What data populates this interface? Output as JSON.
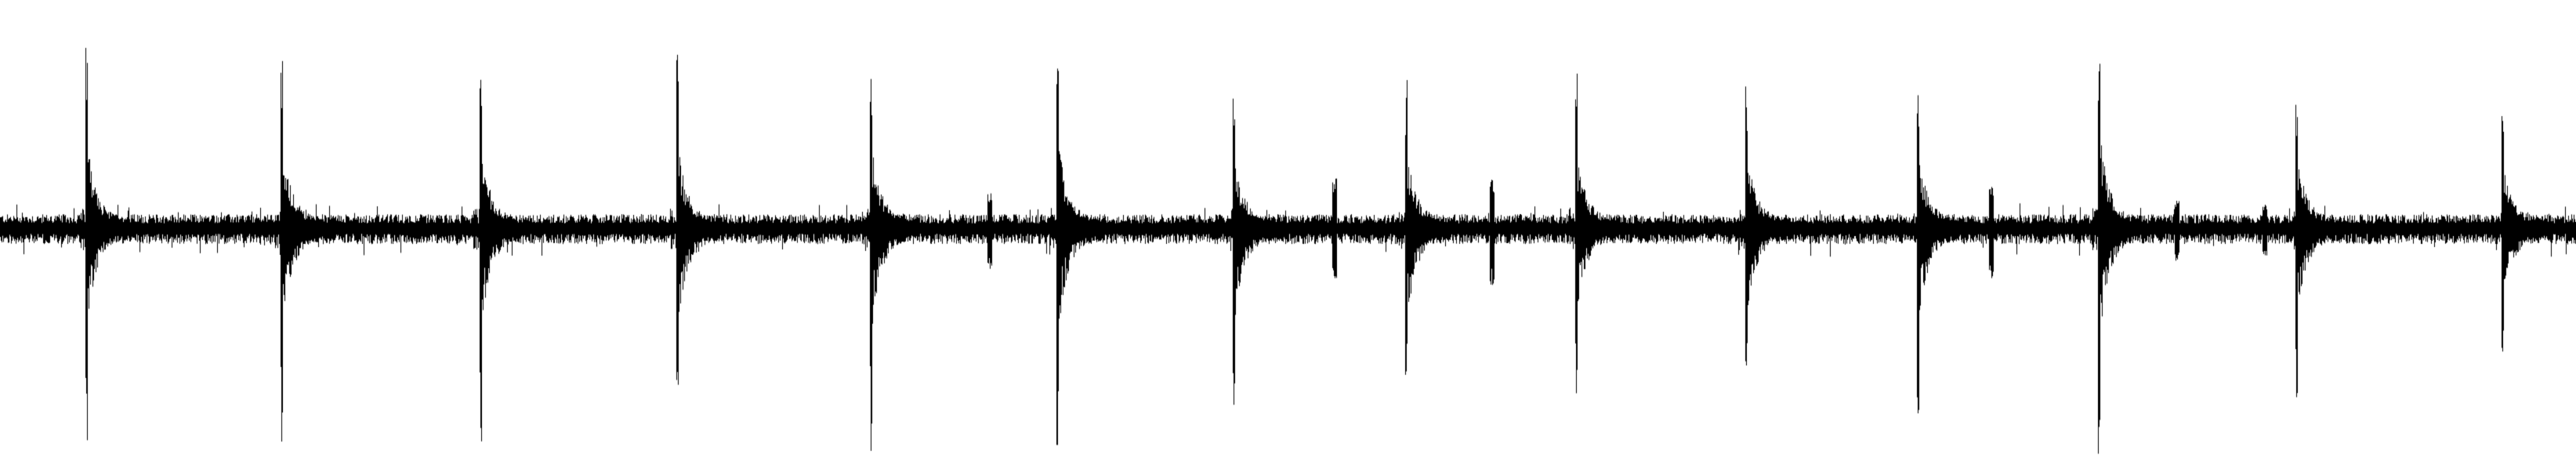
{
  "waveform": {
    "color": "#000000",
    "background": "#ffffff",
    "noise_level": 0.07,
    "transients": [
      {
        "t": 0.0335,
        "up": 0.94,
        "down": 0.96
      },
      {
        "t": 0.1095,
        "up": 0.9,
        "down": 0.94
      },
      {
        "t": 0.1865,
        "up": 0.87,
        "down": 0.95
      },
      {
        "t": 0.263,
        "up": 0.87,
        "down": 0.93
      },
      {
        "t": 0.338,
        "up": 0.92,
        "down": 0.98
      },
      {
        "t": 0.4105,
        "up": 0.96,
        "down": 0.98
      },
      {
        "t": 0.479,
        "up": 0.73,
        "down": 0.86
      },
      {
        "t": 0.546,
        "up": 0.76,
        "down": 0.83
      },
      {
        "t": 0.612,
        "up": 0.78,
        "down": 0.73
      },
      {
        "t": 0.678,
        "up": 0.75,
        "down": 0.77
      },
      {
        "t": 0.7445,
        "up": 0.82,
        "down": 0.89
      },
      {
        "t": 0.815,
        "up": 0.97,
        "down": 1.0
      },
      {
        "t": 0.8915,
        "up": 0.76,
        "down": 0.81
      },
      {
        "t": 0.9715,
        "up": 0.62,
        "down": 0.64
      }
    ],
    "minor_events": [
      {
        "t": 0.384,
        "amp": 0.18
      },
      {
        "t": 0.518,
        "amp": 0.25
      },
      {
        "t": 0.579,
        "amp": 0.25
      },
      {
        "t": 0.773,
        "amp": 0.22
      },
      {
        "t": 0.845,
        "amp": 0.15
      },
      {
        "t": 0.879,
        "amp": 0.12
      }
    ]
  }
}
